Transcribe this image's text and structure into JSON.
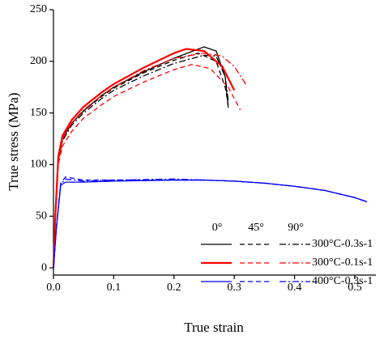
{
  "chart_data": {
    "type": "line",
    "xlabel": "True strain",
    "ylabel": "True stress (MPa)",
    "xlim": [
      0,
      0.535
    ],
    "ylim": [
      -7,
      250
    ],
    "xticks": [
      {
        "value": 0,
        "label": "0.0"
      },
      0.1,
      0.2,
      0.3,
      0.4,
      0.5
    ],
    "yticks": [
      0,
      50,
      100,
      150,
      200,
      250
    ],
    "orientations": [
      "0°",
      "45°",
      "90°"
    ],
    "dashes": [
      "solid",
      "dashed",
      "dashdot"
    ],
    "series": [
      {
        "name": "300°C-0.3s-1",
        "color": "#000000",
        "lines": [
          {
            "x": [
              0,
              0.003,
              0.008,
              0.015,
              0.03,
              0.05,
              0.08,
              0.1,
              0.15,
              0.2,
              0.25,
              0.27,
              0.285,
              0.29
            ],
            "values": [
              0,
              50,
              105,
              125,
              140,
              152,
              167,
              175,
              190,
              203,
              214,
              210,
              185,
              155
            ]
          },
          {
            "x": [
              0,
              0.003,
              0.008,
              0.015,
              0.03,
              0.05,
              0.08,
              0.1,
              0.15,
              0.2,
              0.24,
              0.27,
              0.285,
              0.29
            ],
            "values": [
              0,
              50,
              105,
              125,
              140,
              152,
              166,
              174,
              189,
              201,
              208,
              200,
              175,
              158
            ]
          },
          {
            "x": [
              0,
              0.003,
              0.008,
              0.015,
              0.03,
              0.05,
              0.08,
              0.1,
              0.15,
              0.2,
              0.25,
              0.27,
              0.285,
              0.29
            ],
            "values": [
              0,
              48,
              103,
              123,
              138,
              150,
              164,
              172,
              186,
              198,
              206,
              205,
              185,
              162
            ]
          }
        ]
      },
      {
        "name": "300°C-0.1s-1",
        "color": "#ff0000",
        "lines": [
          {
            "x": [
              0,
              0.003,
              0.008,
              0.015,
              0.03,
              0.05,
              0.08,
              0.1,
              0.15,
              0.2,
              0.22,
              0.25,
              0.28,
              0.3
            ],
            "values": [
              0,
              50,
              108,
              128,
              143,
              156,
              170,
              178,
              194,
              208,
              212,
              210,
              195,
              172
            ]
          },
          {
            "x": [
              0,
              0.003,
              0.008,
              0.015,
              0.03,
              0.05,
              0.08,
              0.1,
              0.15,
              0.2,
              0.23,
              0.26,
              0.29,
              0.31
            ],
            "values": [
              0,
              45,
              100,
              118,
              132,
              145,
              158,
              166,
              180,
              192,
              197,
              193,
              175,
              153
            ]
          },
          {
            "x": [
              0,
              0.003,
              0.008,
              0.015,
              0.03,
              0.05,
              0.08,
              0.1,
              0.15,
              0.2,
              0.25,
              0.28,
              0.3,
              0.32
            ],
            "values": [
              0,
              48,
              105,
              125,
              140,
              153,
              167,
              175,
              191,
              203,
              208,
              205,
              195,
              177
            ]
          }
        ]
      },
      {
        "name": "400°C-0.3s-1",
        "color": "#0000ff",
        "lines": [
          {
            "x": [
              0,
              0.005,
              0.012,
              0.02,
              0.05,
              0.1,
              0.2,
              0.25,
              0.3,
              0.35,
              0.4,
              0.45,
              0.5,
              0.52
            ],
            "values": [
              0,
              40,
              80,
              83,
              83,
              84,
              85,
              85,
              84,
              82,
              79,
              75,
              68,
              64
            ]
          },
          {
            "x": [
              0,
              0.005,
              0.012,
              0.02,
              0.05,
              0.1,
              0.2,
              0.25,
              0.3,
              0.35,
              0.4,
              0.45,
              0.5,
              0.52
            ],
            "values": [
              0,
              40,
              82,
              88,
              85,
              85,
              85,
              85,
              84,
              82,
              79,
              75,
              68,
              64
            ]
          },
          {
            "x": [
              0,
              0.005,
              0.012,
              0.02,
              0.05,
              0.1,
              0.2,
              0.25,
              0.3,
              0.35,
              0.4,
              0.45,
              0.5,
              0.52
            ],
            "values": [
              0,
              40,
              81,
              86,
              84,
              85,
              86,
              85,
              84,
              82,
              79,
              75,
              68,
              64
            ]
          }
        ]
      }
    ]
  }
}
